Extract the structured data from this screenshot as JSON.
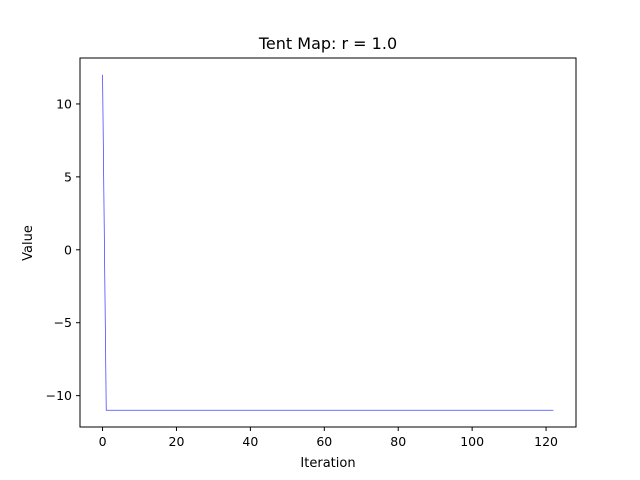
{
  "chart_data": {
    "type": "line",
    "title": "Tent Map: r = 1.0",
    "xlabel": "Iteration",
    "ylabel": "Value",
    "xlim": [
      -6.1,
      128.1
    ],
    "ylim": [
      -12.15,
      13.15
    ],
    "xticks": [
      0,
      20,
      40,
      60,
      80,
      100,
      120
    ],
    "yticks": [
      -10,
      -5,
      0,
      5,
      10
    ],
    "xtick_labels": [
      "0",
      "20",
      "40",
      "60",
      "80",
      "100",
      "120"
    ],
    "ytick_labels": [
      "−10",
      "−5",
      "0",
      "5",
      "10"
    ],
    "grid": false,
    "series": [
      {
        "color": "#0000ff",
        "x": [
          0,
          1,
          122
        ],
        "y": [
          12,
          -11,
          -11
        ]
      }
    ]
  }
}
